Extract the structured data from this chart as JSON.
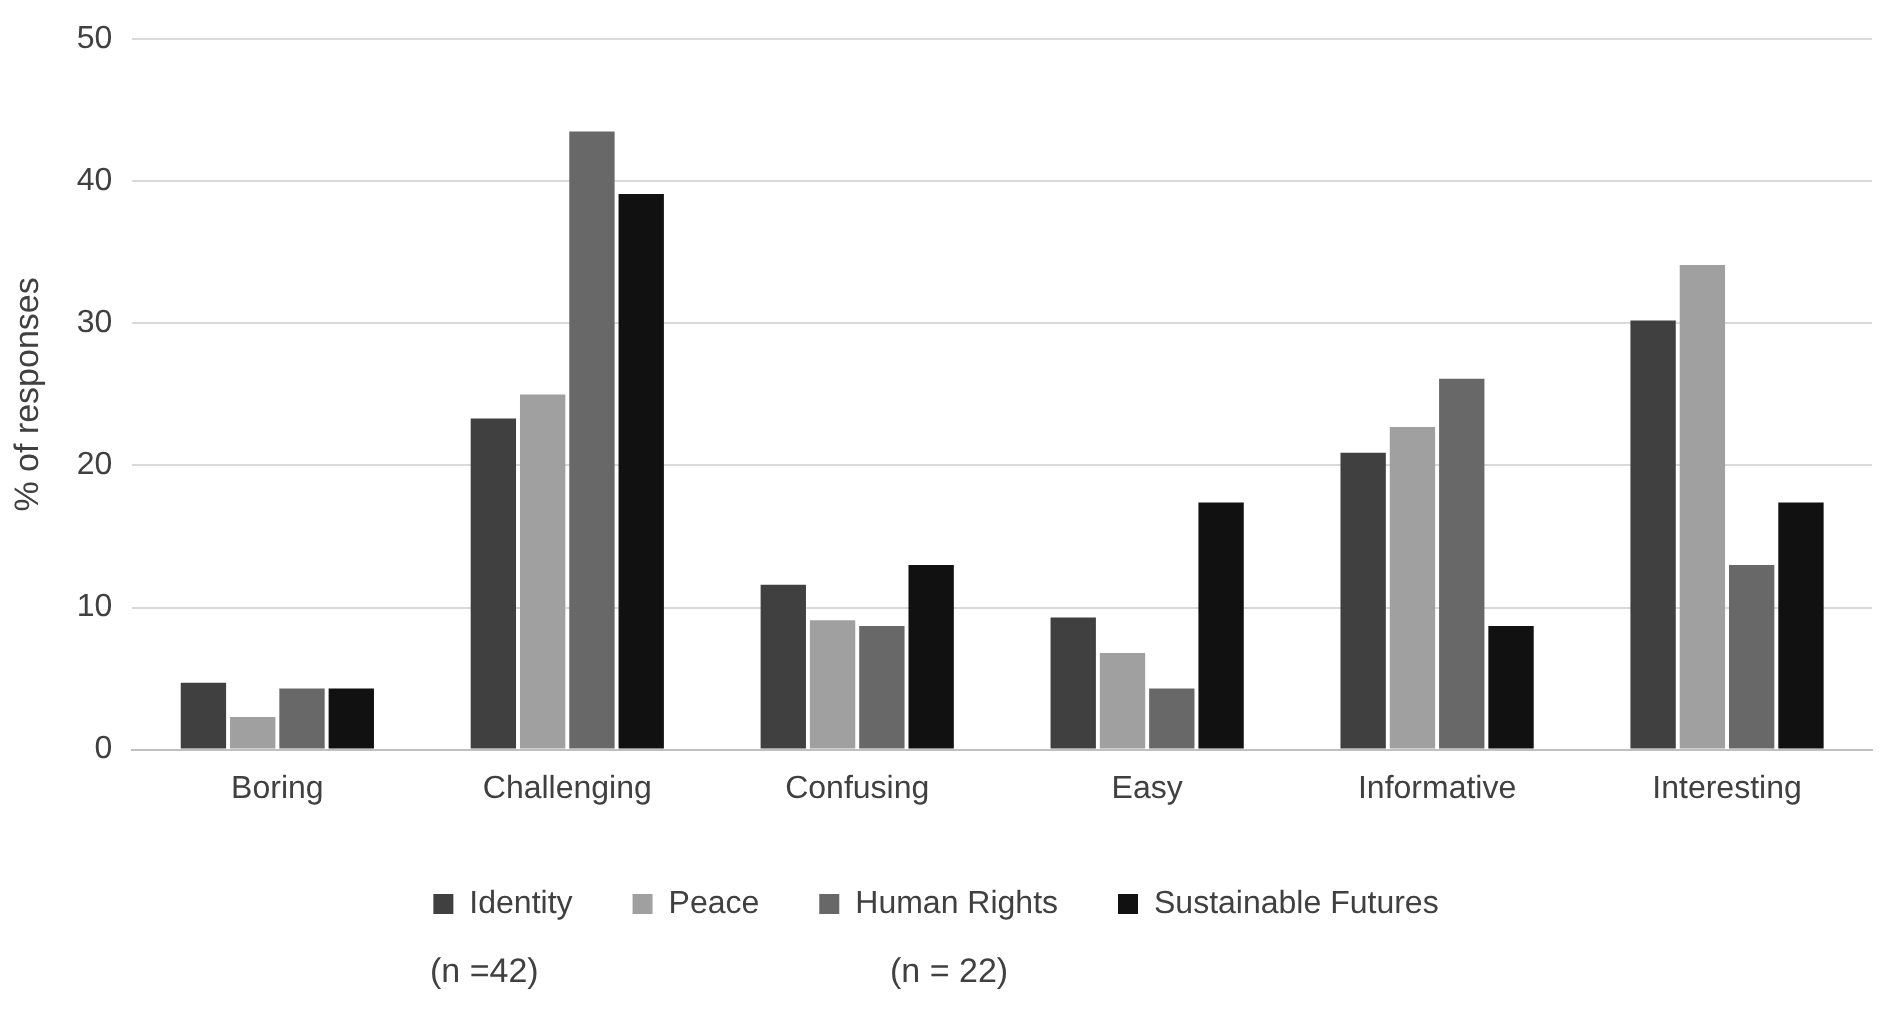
{
  "chart_data": {
    "type": "bar",
    "ylabel": "% of responses",
    "categories": [
      "Boring",
      "Challenging",
      "Confusing",
      "Easy",
      "Informative",
      "Interesting"
    ],
    "series": [
      {
        "name": "Identity",
        "color": "#404040",
        "values": [
          4.7,
          23.3,
          11.6,
          9.3,
          20.9,
          30.2
        ]
      },
      {
        "name": "Peace",
        "color": "#a0a0a0",
        "values": [
          2.3,
          25,
          9.1,
          6.8,
          22.7,
          34.1
        ]
      },
      {
        "name": "Human Rights",
        "color": "#686868",
        "values": [
          4.3,
          43.5,
          8.7,
          4.3,
          26.1,
          13
        ]
      },
      {
        "name": "Sustainable Futures",
        "color": "#111111",
        "values": [
          4.3,
          39.1,
          13,
          17.4,
          8.7,
          17.4
        ]
      }
    ],
    "ylim": [
      0,
      50
    ],
    "yticks": [
      0,
      10,
      20,
      30,
      40,
      50
    ],
    "grid": "y",
    "legend": "bottom",
    "annotations": [
      "(n =42)",
      "(n = 22)"
    ]
  }
}
